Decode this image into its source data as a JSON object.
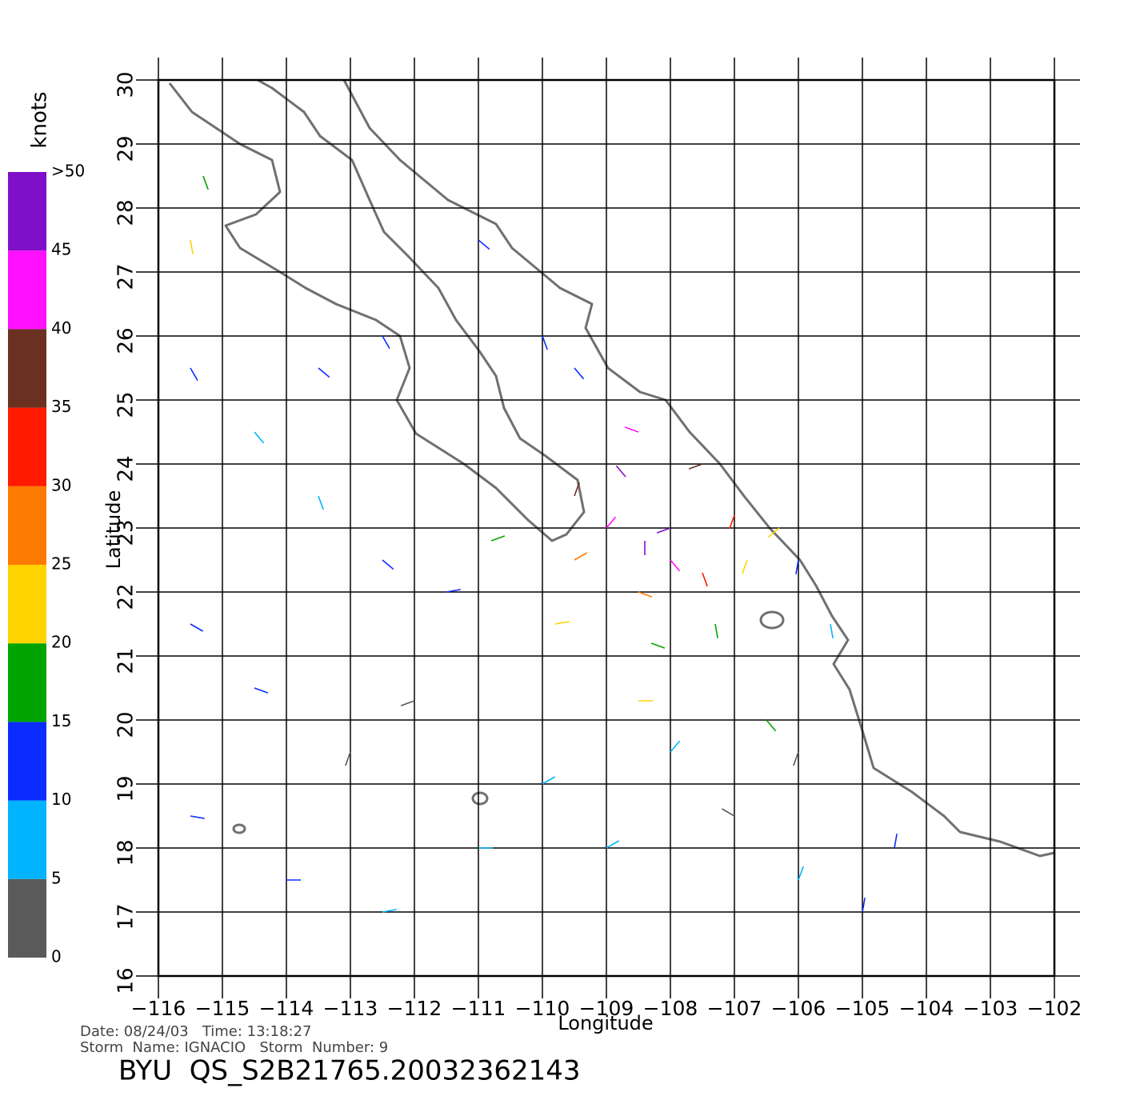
{
  "chart_data": {
    "type": "wind-vector",
    "x_label": "Longitude",
    "y_label": "Latitude",
    "colorbar_label": "knots",
    "annotations": [
      "Date: 08/24/03   Time: 13:18:27",
      "Storm  Name: IGNACIO   Storm  Number: 9"
    ],
    "footer_title": "BYU  QS_S2B21765.20032362143",
    "xlim": [
      -116,
      -102
    ],
    "ylim": [
      16,
      30
    ],
    "xticks": [
      {
        "value": -116,
        "label": "−116"
      },
      {
        "value": -115,
        "label": "−115"
      },
      {
        "value": -114,
        "label": "−114"
      },
      {
        "value": -113,
        "label": "−113"
      },
      {
        "value": -112,
        "label": "−112"
      },
      {
        "value": -111,
        "label": "−111"
      },
      {
        "value": -110,
        "label": "−110"
      },
      {
        "value": -109,
        "label": "−109"
      },
      {
        "value": -108,
        "label": "−108"
      },
      {
        "value": -107,
        "label": "−107"
      },
      {
        "value": -106,
        "label": "−106"
      },
      {
        "value": -105,
        "label": "−105"
      },
      {
        "value": -104,
        "label": "−104"
      },
      {
        "value": -103,
        "label": "−103"
      },
      {
        "value": -102,
        "label": "−102"
      }
    ],
    "yticks": [
      16,
      17,
      18,
      19,
      20,
      21,
      22,
      23,
      24,
      25,
      26,
      27,
      28,
      29,
      30
    ],
    "grid": true,
    "colorbar": {
      "bins": [
        0,
        5,
        10,
        15,
        20,
        25,
        30,
        35,
        40,
        45,
        50
      ],
      "colors": [
        "#5a5a5a",
        "#00b4ff",
        "#0a2cff",
        "#00a400",
        "#ffd400",
        "#ff7a00",
        "#ff1a00",
        "#6a3020",
        "#ff10ff",
        "#8010c8"
      ],
      "ticks": [
        0,
        5,
        10,
        15,
        20,
        25,
        30,
        35,
        40,
        45,
        {
          "value": 50,
          "label": ">50"
        }
      ]
    },
    "vectors": {
      "x": [
        -115.5,
        -114.5,
        -113.5,
        -112.5,
        -115.5,
        -114.5,
        -113,
        -112,
        -115.5,
        -114,
        -112.5,
        -111,
        -110,
        -109,
        -108,
        -107,
        -106,
        -105,
        -104.5,
        -106,
        -115.5,
        -115.3,
        -113.5,
        -112.5,
        -111,
        -110,
        -109.5,
        -108.5,
        -107.5,
        -107,
        -107.5,
        -108.5,
        -109.5,
        -109.5,
        -108.7,
        -108,
        -108.4,
        -109,
        -108,
        -109.8,
        -108.3,
        -107.3,
        -106.8,
        -106.3,
        -110.8,
        -111.5,
        -108.5,
        -106.5,
        -105.5,
        -106
      ],
      "y": [
        25.5,
        24.5,
        23.5,
        22.5,
        21.5,
        20.5,
        19.5,
        20.3,
        18.5,
        17.5,
        17,
        18,
        19,
        18,
        19.5,
        18.5,
        17.5,
        17,
        18,
        19.5,
        27.5,
        28.5,
        25.5,
        26,
        27.5,
        26,
        25.5,
        24.5,
        24,
        23.2,
        22.3,
        22,
        22.5,
        23.5,
        23.8,
        23,
        22.8,
        23,
        22.5,
        21.5,
        21.2,
        21.5,
        22.5,
        23,
        22.8,
        22,
        20.3,
        20,
        21.5,
        22.5
      ],
      "speed": [
        10,
        8,
        9,
        12,
        11,
        13,
        3,
        4,
        12,
        13,
        8,
        6,
        5,
        7,
        9,
        4,
        8,
        11,
        12,
        3,
        22,
        18,
        10,
        11,
        12,
        13,
        14,
        42,
        38,
        33,
        30,
        28,
        26,
        36,
        45,
        48,
        50,
        44,
        40,
        20,
        19,
        15,
        22,
        24,
        18,
        14,
        20,
        16,
        9,
        13
      ],
      "direction": [
        150,
        140,
        160,
        130,
        120,
        110,
        200,
        250,
        100,
        90,
        80,
        90,
        60,
        60,
        40,
        300,
        20,
        10,
        10,
        200,
        170,
        160,
        130,
        150,
        130,
        160,
        140,
        290,
        250,
        200,
        160,
        110,
        60,
        20,
        320,
        250,
        180,
        40,
        140,
        80,
        110,
        170,
        200,
        230,
        70,
        80,
        90,
        140,
        170,
        190
      ]
    }
  }
}
